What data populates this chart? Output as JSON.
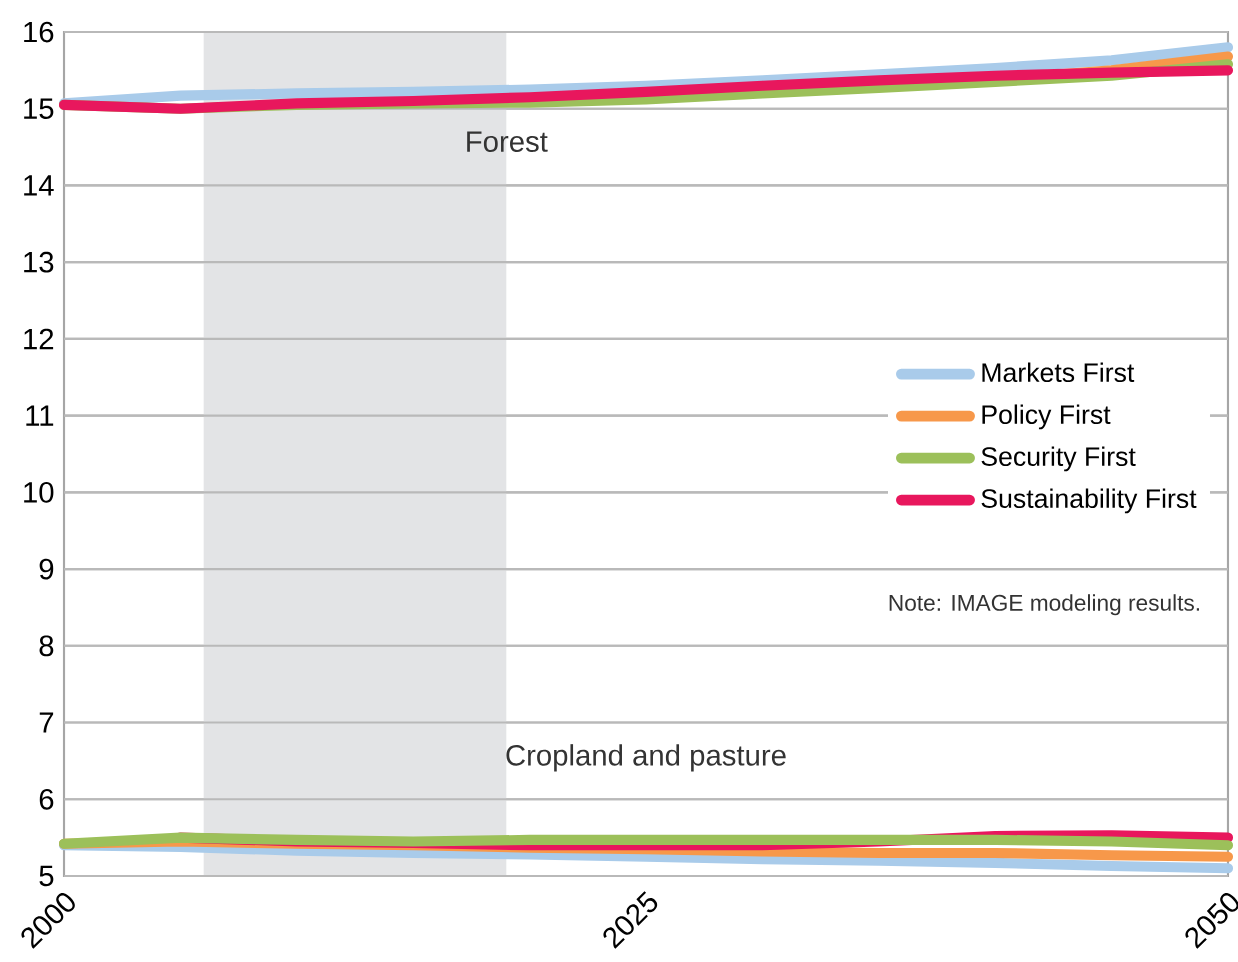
{
  "chart_data": {
    "type": "line",
    "x": [
      2000,
      2005,
      2010,
      2015,
      2020,
      2025,
      2030,
      2035,
      2040,
      2045,
      2050
    ],
    "series": [
      {
        "name": "Markets First",
        "color": "#a9cbea",
        "values": [
          15.07,
          15.17,
          15.2,
          15.22,
          15.25,
          15.3,
          15.37,
          15.45,
          15.53,
          15.63,
          15.8
        ]
      },
      {
        "name": "Policy First",
        "color": "#f7984a",
        "values": [
          null,
          null,
          null,
          null,
          null,
          null,
          null,
          null,
          15.38,
          15.5,
          15.68
        ]
      },
      {
        "name": "Security First",
        "color": "#9cc05a",
        "values": [
          15.05,
          15.0,
          15.05,
          15.07,
          15.08,
          15.12,
          15.2,
          15.27,
          15.35,
          15.43,
          15.58
        ]
      },
      {
        "name": "Sustainability First",
        "color": "#e8175d",
        "values": [
          15.05,
          15.0,
          15.07,
          15.1,
          15.15,
          15.22,
          15.3,
          15.37,
          15.43,
          15.47,
          15.5
        ]
      },
      {
        "color": "#a9cbea",
        "values": [
          5.4,
          5.38,
          5.33,
          5.3,
          5.28,
          5.25,
          5.22,
          5.2,
          5.17,
          5.13,
          5.1
        ]
      },
      {
        "color": "#f7984a",
        "values": [
          5.42,
          5.45,
          5.42,
          5.4,
          5.37,
          5.35,
          5.32,
          5.3,
          5.3,
          5.27,
          5.25
        ]
      },
      {
        "color": "#e8175d",
        "values": [
          null,
          5.5,
          5.45,
          5.43,
          5.4,
          5.4,
          5.4,
          5.45,
          5.52,
          5.53,
          5.5
        ]
      },
      {
        "color": "#9cc05a",
        "values": [
          5.42,
          5.5,
          5.47,
          5.45,
          5.47,
          5.47,
          5.47,
          5.47,
          5.47,
          5.45,
          5.4
        ]
      }
    ],
    "xlim": [
      2000,
      2050
    ],
    "xticks": [
      2000,
      2025,
      2050
    ],
    "ylim": [
      5,
      16
    ],
    "yticks": [
      5,
      6,
      7,
      8,
      9,
      10,
      11,
      12,
      13,
      14,
      15,
      16
    ],
    "grid": "y",
    "legend": "right",
    "marker": "none",
    "line_style": "solid",
    "bands": [
      {
        "axis": "x",
        "from": 2006,
        "to": 2019,
        "color": "#e3e4e6"
      }
    ],
    "annotations": [
      "Forest",
      "Cropland and pasture",
      "Note: IMAGE modeling results."
    ]
  }
}
